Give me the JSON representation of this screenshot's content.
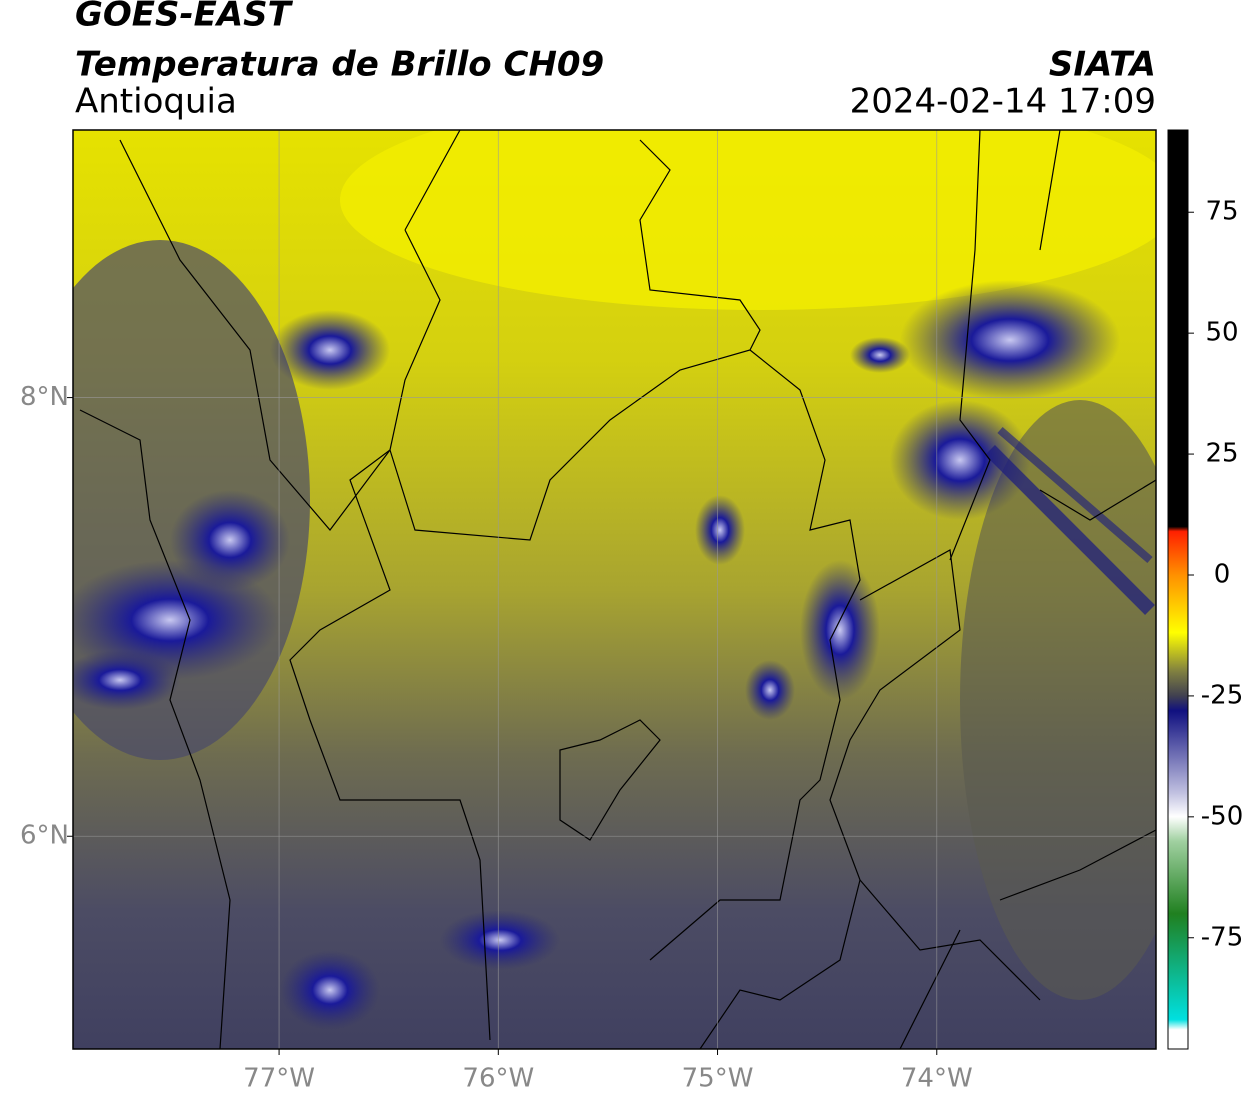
{
  "header": {
    "satellite": "GOES-EAST",
    "product": "Temperatura de Brillo CH09",
    "region": "Antioquia",
    "source": "SIATA",
    "datetime": "2024-02-14 17:09"
  },
  "map": {
    "xlim": [
      -77.94,
      -73.0
    ],
    "ylim": [
      5.03,
      9.22
    ],
    "xticks": [
      {
        "value": -77,
        "label": "77°W"
      },
      {
        "value": -76,
        "label": "76°W"
      },
      {
        "value": -75,
        "label": "75°W"
      },
      {
        "value": -74,
        "label": "74°W"
      }
    ],
    "yticks": [
      {
        "value": 8,
        "label": "8°N"
      },
      {
        "value": 6,
        "label": "6°N"
      }
    ],
    "grid": true
  },
  "colorbar": {
    "lim": [
      -98,
      92
    ],
    "ticks": [
      75,
      50,
      25,
      0,
      -25,
      -50,
      -75
    ]
  }
}
